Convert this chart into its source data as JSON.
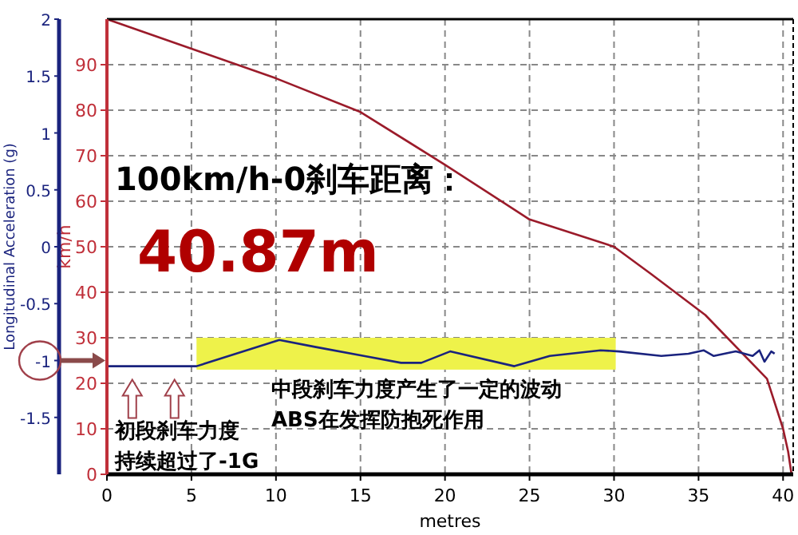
{
  "chart_data": {
    "type": "line",
    "xlabel": "metres",
    "ylabel": "Longitudinal Acceleration (g)",
    "y2label": "km/h",
    "xlim": [
      0,
      40.6
    ],
    "xticks": [
      0,
      5,
      10,
      15,
      20,
      25,
      30,
      35,
      40
    ],
    "ylim": [
      -2,
      2
    ],
    "yticks": [
      2,
      1.5,
      1,
      0.5,
      0,
      -0.5,
      -1,
      -1.5
    ],
    "y2lim": [
      0,
      100
    ],
    "y2ticks": [
      0,
      10,
      20,
      30,
      40,
      50,
      60,
      70,
      80,
      90
    ],
    "grid": true,
    "line_style": "solid",
    "series": [
      {
        "color": "#9b1b2a",
        "axis": "y2",
        "x": [
          0,
          5,
          10,
          15,
          20,
          25,
          30,
          32.2,
          35.4,
          39.05,
          40,
          40.3,
          40.5
        ],
        "values": [
          100,
          93.5,
          87,
          79.6,
          68,
          56,
          50,
          44,
          35,
          21,
          10,
          5,
          0
        ]
      },
      {
        "color": "#1a237e",
        "axis": "y",
        "x": [
          0,
          5.3,
          10.2,
          12.3,
          15.2,
          17.4,
          18.6,
          20.3,
          24.1,
          26.2,
          29.2,
          30.3,
          32.8,
          34.4,
          35.3,
          35.9,
          37.2,
          38.2,
          38.6,
          38.9,
          39.3,
          39.5
        ],
        "values": [
          -1.05,
          -1.05,
          -0.82,
          -0.88,
          -0.96,
          -1.02,
          -1.02,
          -0.92,
          -1.05,
          -0.96,
          -0.91,
          -0.92,
          -0.96,
          -0.94,
          -0.91,
          -0.96,
          -0.92,
          -0.96,
          -0.91,
          -1.01,
          -0.92,
          -0.94
        ]
      }
    ],
    "bands": [
      {
        "axis": "x",
        "from": 5.3,
        "to": 30.1,
        "color": "#eef24a"
      }
    ],
    "annotations": [
      "100km/h-0刹车距离：",
      "40.87m",
      "中段刹车力度产生了一定的波动",
      "ABS在发挥防抱死作用",
      "初段刹车力度",
      "持续超过了-1G"
    ]
  }
}
